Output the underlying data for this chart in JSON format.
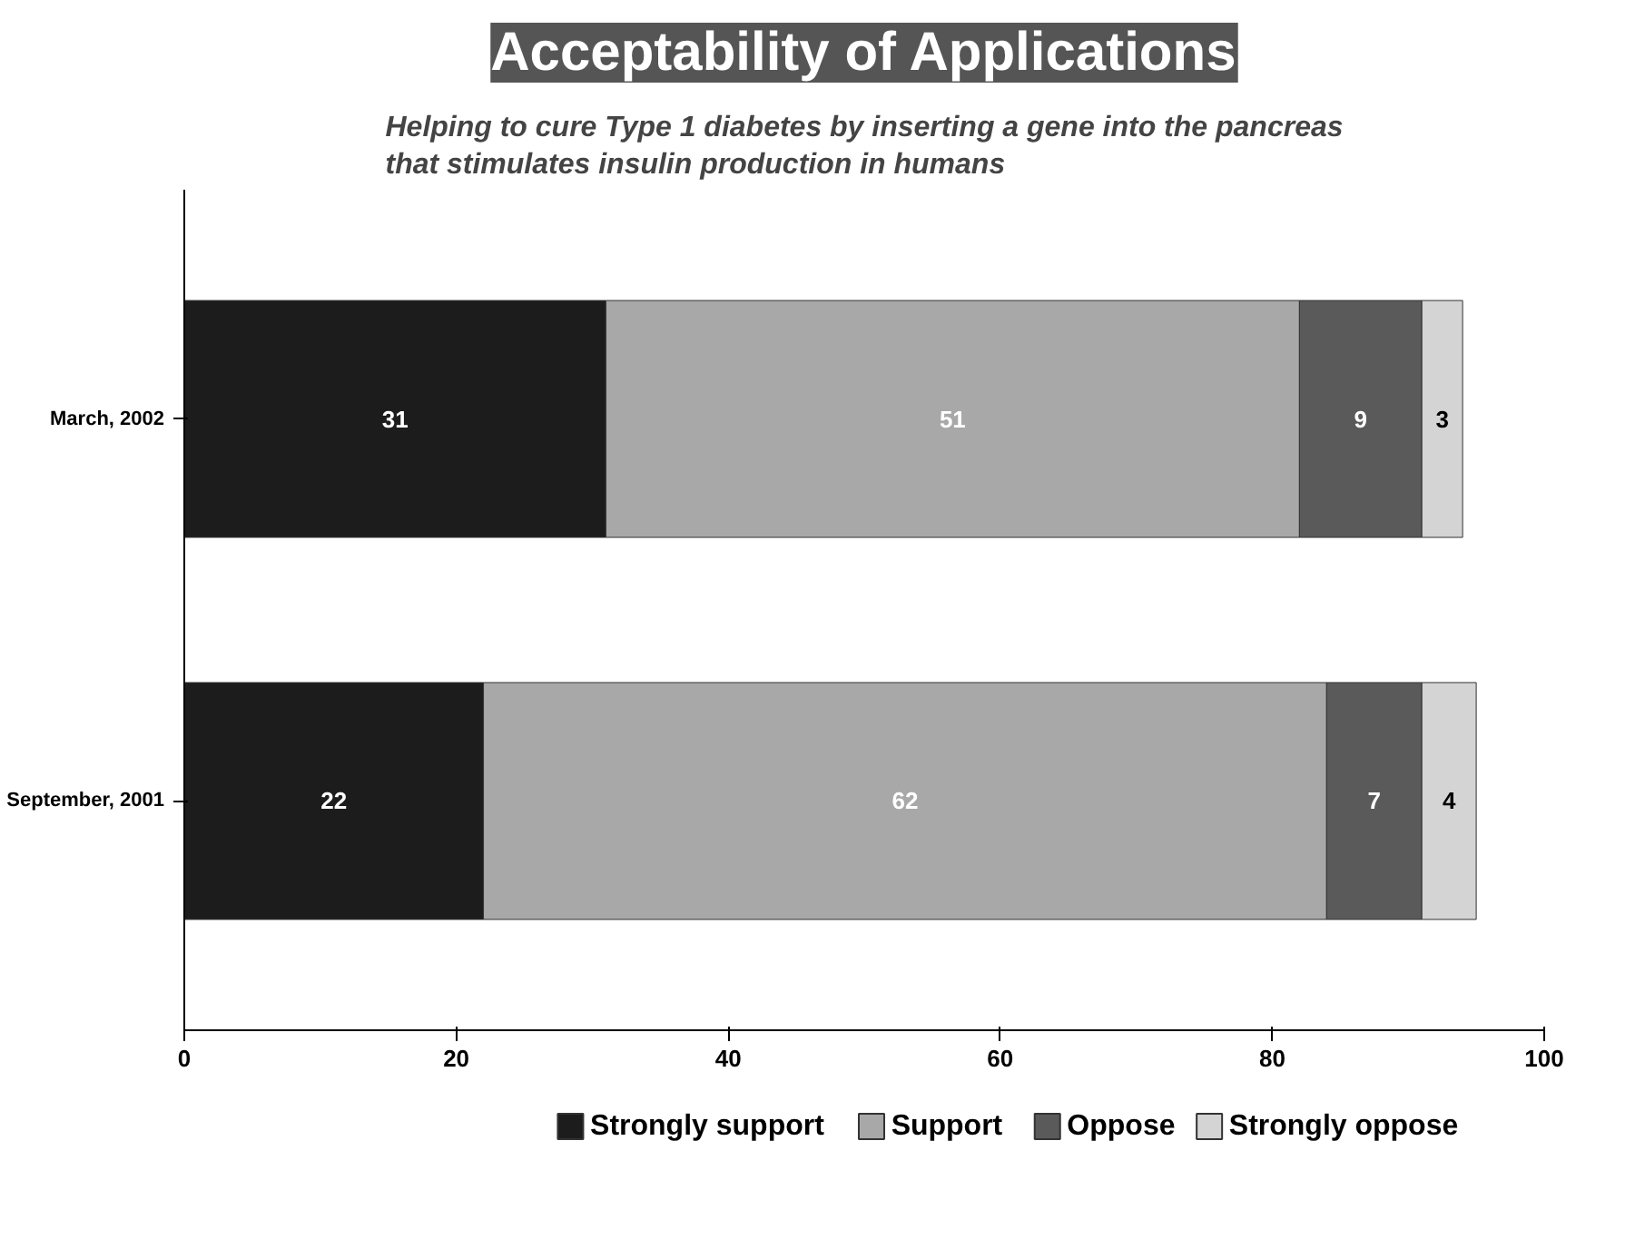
{
  "chart_data": {
    "type": "bar",
    "orientation": "horizontal",
    "stacked": true,
    "title": "Acceptability of Applications",
    "subtitle": "Helping to cure Type 1 diabetes by inserting a gene into the pancreas\nthat stimulates insulin production in humans",
    "categories": [
      "March, 2002",
      "September, 2001"
    ],
    "series": [
      {
        "name": "Strongly support",
        "color": "#1c1c1c",
        "values": [
          31,
          22
        ]
      },
      {
        "name": "Support",
        "color": "#a8a8a8",
        "values": [
          51,
          62
        ]
      },
      {
        "name": "Oppose",
        "color": "#5a5a5a",
        "values": [
          9,
          7
        ]
      },
      {
        "name": "Strongly oppose",
        "color": "#d4d4d4",
        "values": [
          3,
          4
        ]
      }
    ],
    "xlim": [
      0,
      100
    ],
    "xticks": [
      0,
      20,
      40,
      60,
      80,
      100
    ],
    "data_labels": true,
    "grid": false,
    "legend": "bottom"
  }
}
